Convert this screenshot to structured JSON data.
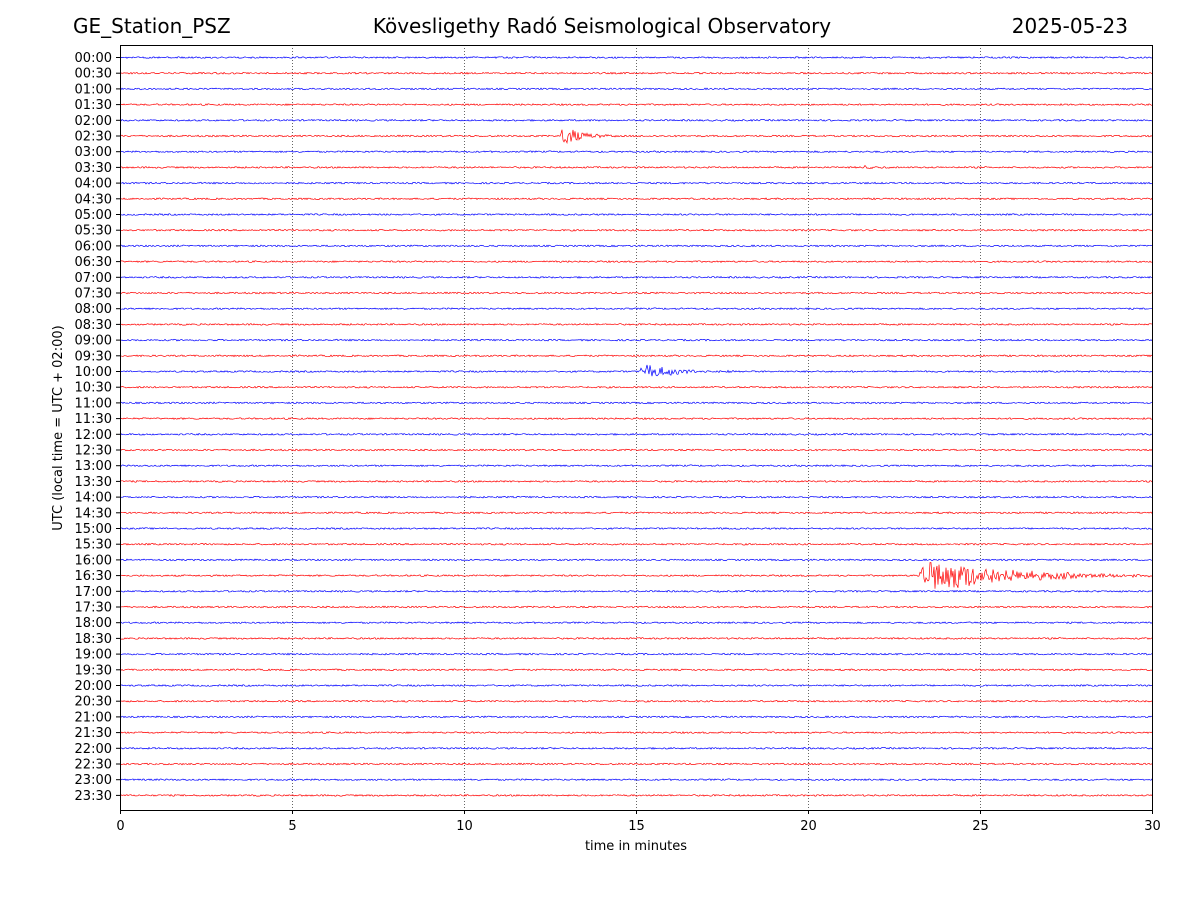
{
  "header": {
    "station": "GE_Station_PSZ",
    "observatory": "Kövesligethy Radó Seismological Observatory",
    "date": "2025-05-23"
  },
  "chart_data": {
    "type": "line",
    "title": "Kövesligethy Radó Seismological Observatory",
    "xlabel": "time in minutes",
    "ylabel": "UTC (local time = UTC + 02:00)",
    "xlim": [
      0,
      30
    ],
    "x_ticks": [
      0,
      5,
      10,
      15,
      20,
      25,
      30
    ],
    "grid": "vertical dotted at 5-minute intervals",
    "row_labels": [
      "00:00",
      "00:30",
      "01:00",
      "01:30",
      "02:00",
      "02:30",
      "03:00",
      "03:30",
      "04:00",
      "04:30",
      "05:00",
      "05:30",
      "06:00",
      "06:30",
      "07:00",
      "07:30",
      "08:00",
      "08:30",
      "09:00",
      "09:30",
      "10:00",
      "10:30",
      "11:00",
      "11:30",
      "12:00",
      "12:30",
      "13:00",
      "13:30",
      "14:00",
      "14:30",
      "15:00",
      "15:30",
      "16:00",
      "16:30",
      "17:00",
      "17:30",
      "18:00",
      "18:30",
      "19:00",
      "19:30",
      "20:00",
      "20:30",
      "21:00",
      "21:30",
      "22:00",
      "22:30",
      "23:00",
      "23:30"
    ],
    "trace_colors": [
      "#0000ff",
      "#ff0000"
    ],
    "events": [
      {
        "row": "02:30",
        "start_min": 12.8,
        "end_min": 14.5,
        "peak_amplitude": 0.9
      },
      {
        "row": "03:30",
        "start_min": 21.6,
        "end_min": 22.5,
        "peak_amplitude": 0.2
      },
      {
        "row": "10:00",
        "start_min": 15.1,
        "end_min": 18.0,
        "peak_amplitude": 0.65
      },
      {
        "row": "16:30",
        "start_min": 23.2,
        "end_min": 30.0,
        "peak_amplitude": 1.5
      }
    ]
  }
}
